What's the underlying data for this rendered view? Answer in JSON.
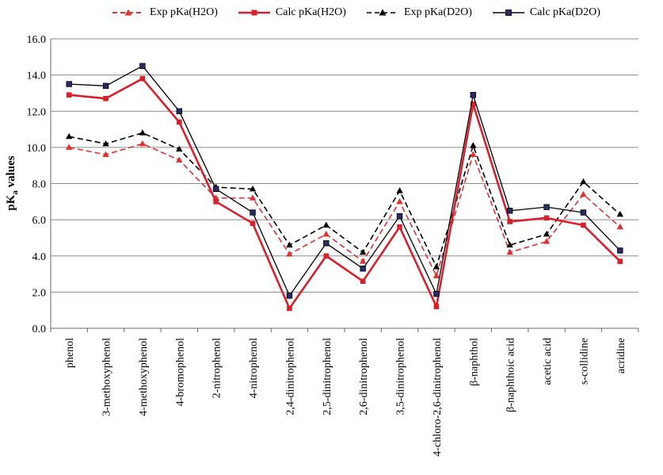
{
  "chart_data": {
    "type": "line",
    "title": "",
    "xlabel": "",
    "ylabel_main": "pK",
    "ylabel_sub": "a",
    "ylabel_rest": " values",
    "ylim": [
      0,
      16
    ],
    "yticks": [
      "0.0",
      "2.0",
      "4.0",
      "6.0",
      "8.0",
      "10.0",
      "12.0",
      "14.0",
      "16.0"
    ],
    "ytick_values": [
      0,
      2,
      4,
      6,
      8,
      10,
      12,
      14,
      16
    ],
    "grid": true,
    "legend_position": "top",
    "categories": [
      "phenol",
      "3-methoxyphenol",
      "4-methoxyphenol",
      "4-bromophenol",
      "2-nitrophenol",
      "4-nitrophenol",
      "2,4-dinitrophenol",
      "2,5-dinitrophenol",
      "2,6-dinitrophenol",
      "3,5-dinitrophenol",
      "4-chloro-2,6-dinitrophenol",
      "β-naphthol",
      "β-naphthoic acid",
      "acetic acid",
      "s-collidine",
      "acridine"
    ],
    "series": [
      {
        "name": "Exp pKa(H2O)",
        "color": "#e03030",
        "dash": true,
        "marker": "triangle",
        "values": [
          10.0,
          9.6,
          10.2,
          9.3,
          7.2,
          7.2,
          4.1,
          5.2,
          3.7,
          7.0,
          2.9,
          9.6,
          4.2,
          4.8,
          7.4,
          5.6
        ]
      },
      {
        "name": "Calc pKa(H2O)",
        "color": "#d8202c",
        "dash": false,
        "marker": "square",
        "values": [
          12.9,
          12.7,
          13.8,
          11.4,
          7.0,
          5.8,
          1.1,
          4.0,
          2.6,
          5.6,
          1.2,
          12.4,
          5.9,
          6.1,
          5.7,
          3.7
        ]
      },
      {
        "name": "Exp pKa(D2O)",
        "color": "#000000",
        "dash": true,
        "marker": "triangle",
        "values": [
          10.6,
          10.2,
          10.8,
          9.9,
          7.8,
          7.7,
          4.6,
          5.7,
          4.2,
          7.6,
          3.4,
          10.1,
          4.6,
          5.2,
          8.1,
          6.3
        ]
      },
      {
        "name": "Calc pKa(D2O)",
        "color": "#000000",
        "dash": false,
        "marker": "square",
        "values": [
          13.5,
          13.4,
          14.5,
          12.0,
          7.7,
          6.4,
          1.8,
          4.7,
          3.3,
          6.2,
          1.9,
          12.9,
          6.5,
          6.7,
          6.4,
          4.3
        ]
      }
    ]
  }
}
